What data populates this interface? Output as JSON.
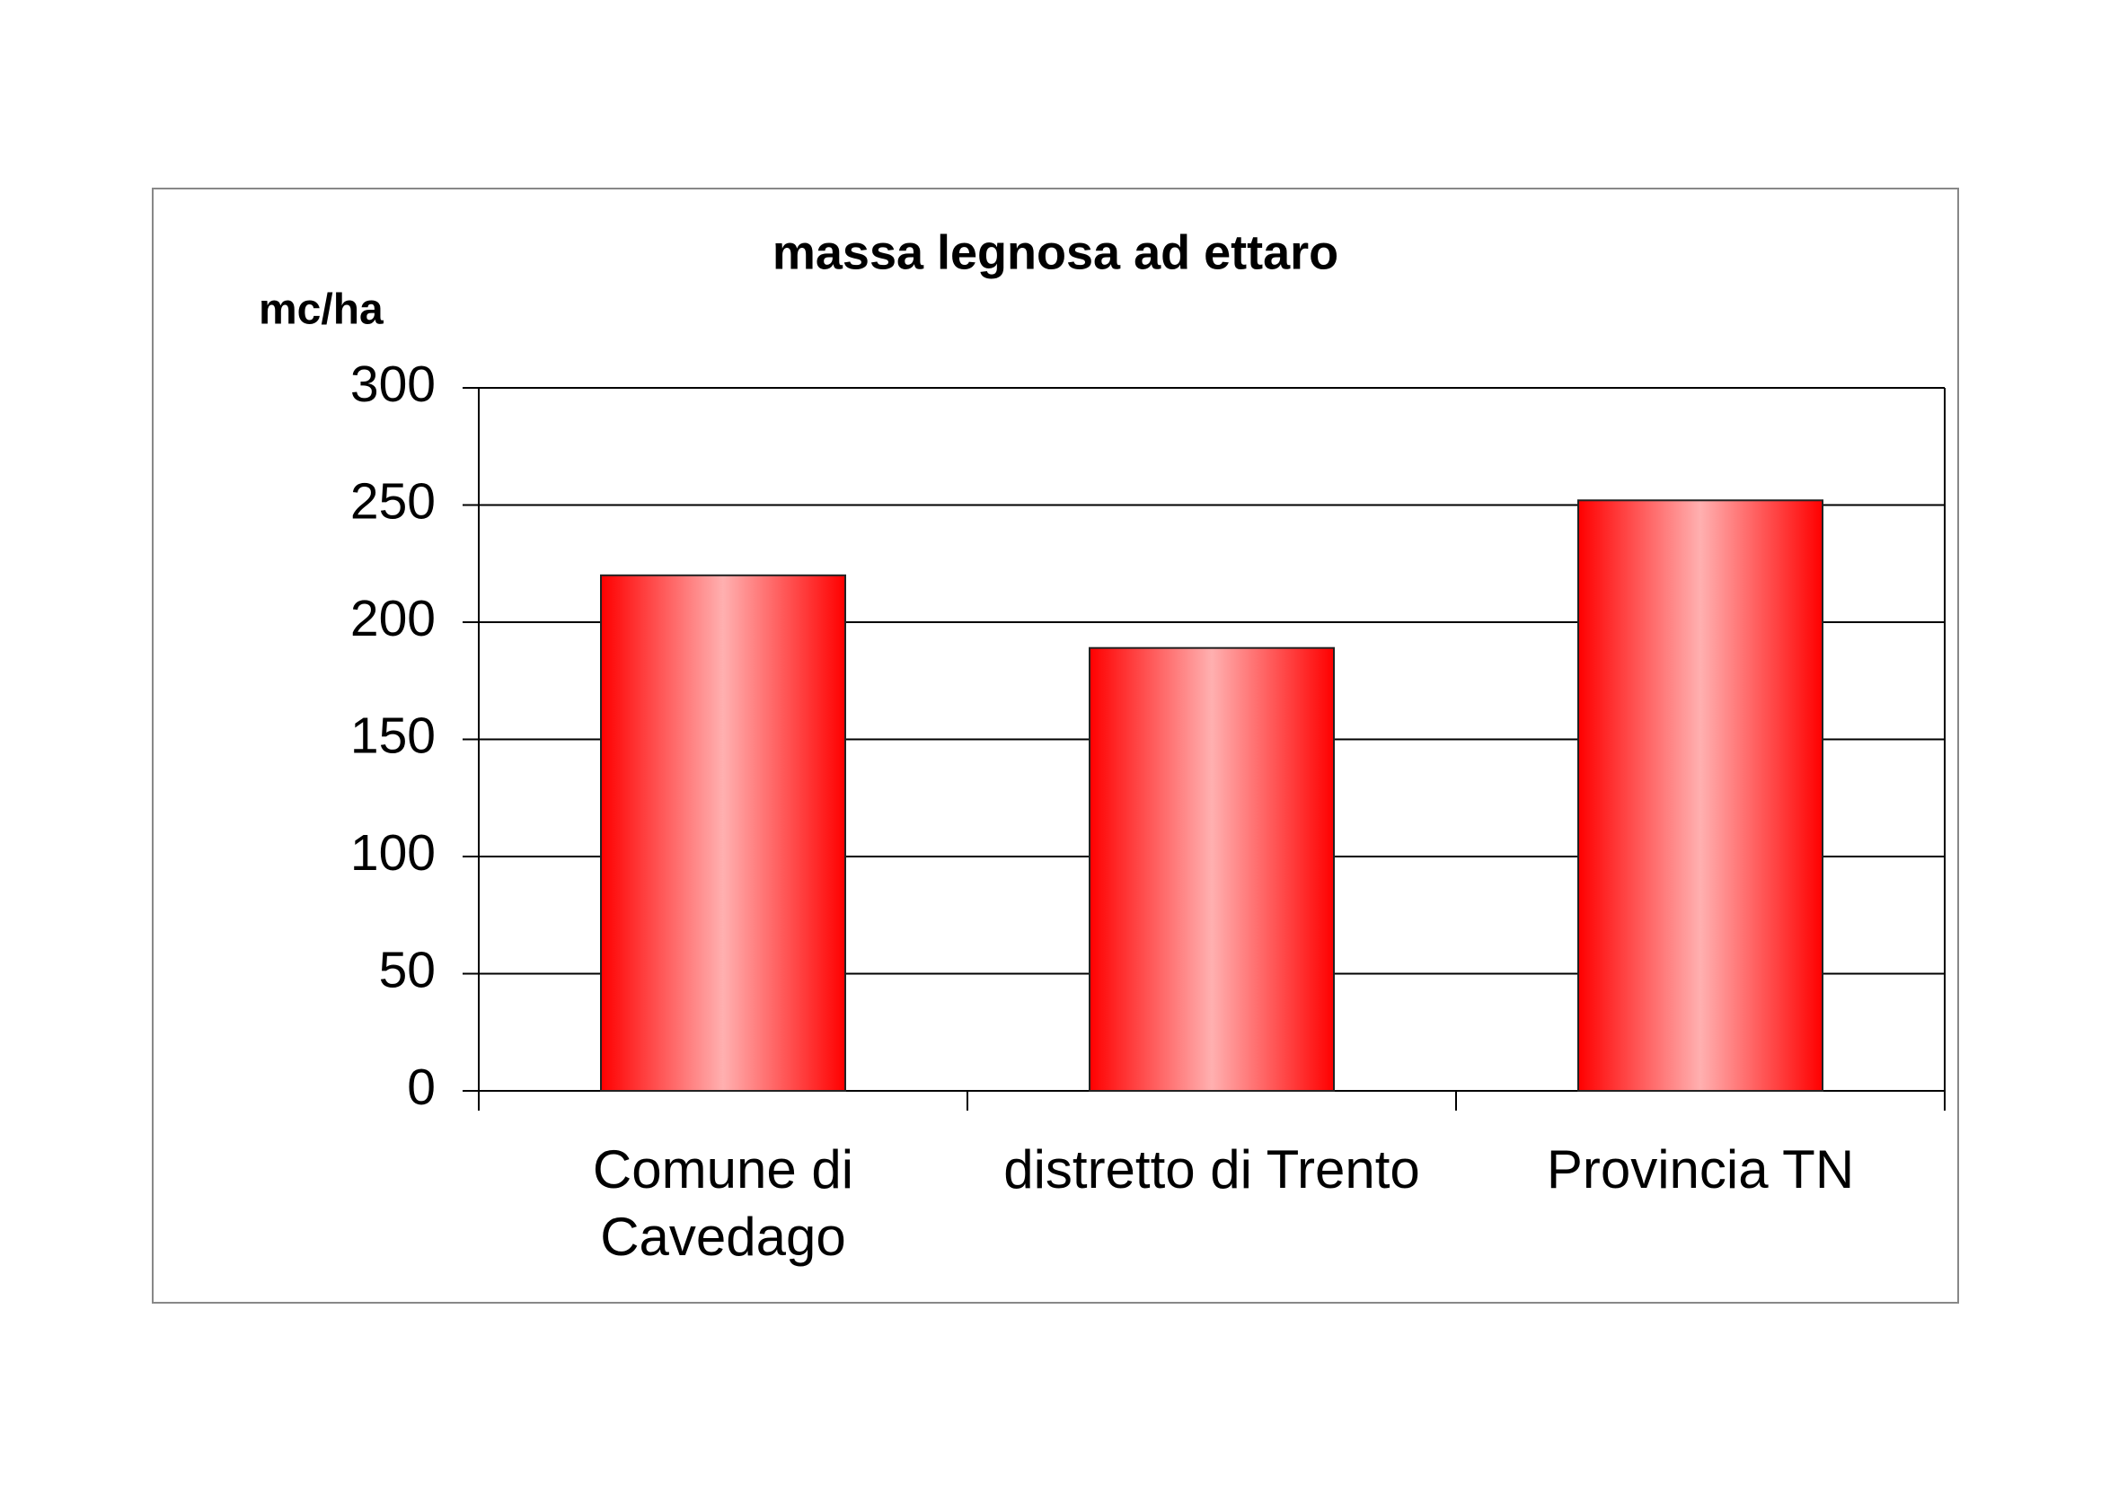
{
  "chart_data": {
    "type": "bar",
    "title": "massa legnosa ad ettaro",
    "y_label": "mc/ha",
    "categories": [
      "Comune di\nCavedago",
      "distretto di Trento",
      "Provincia TN"
    ],
    "values": [
      220,
      189,
      252
    ],
    "color": "#ff0000",
    "ylim": [
      0,
      300
    ],
    "yticks": [
      0,
      50,
      100,
      150,
      200,
      250,
      300
    ],
    "grid": true
  }
}
